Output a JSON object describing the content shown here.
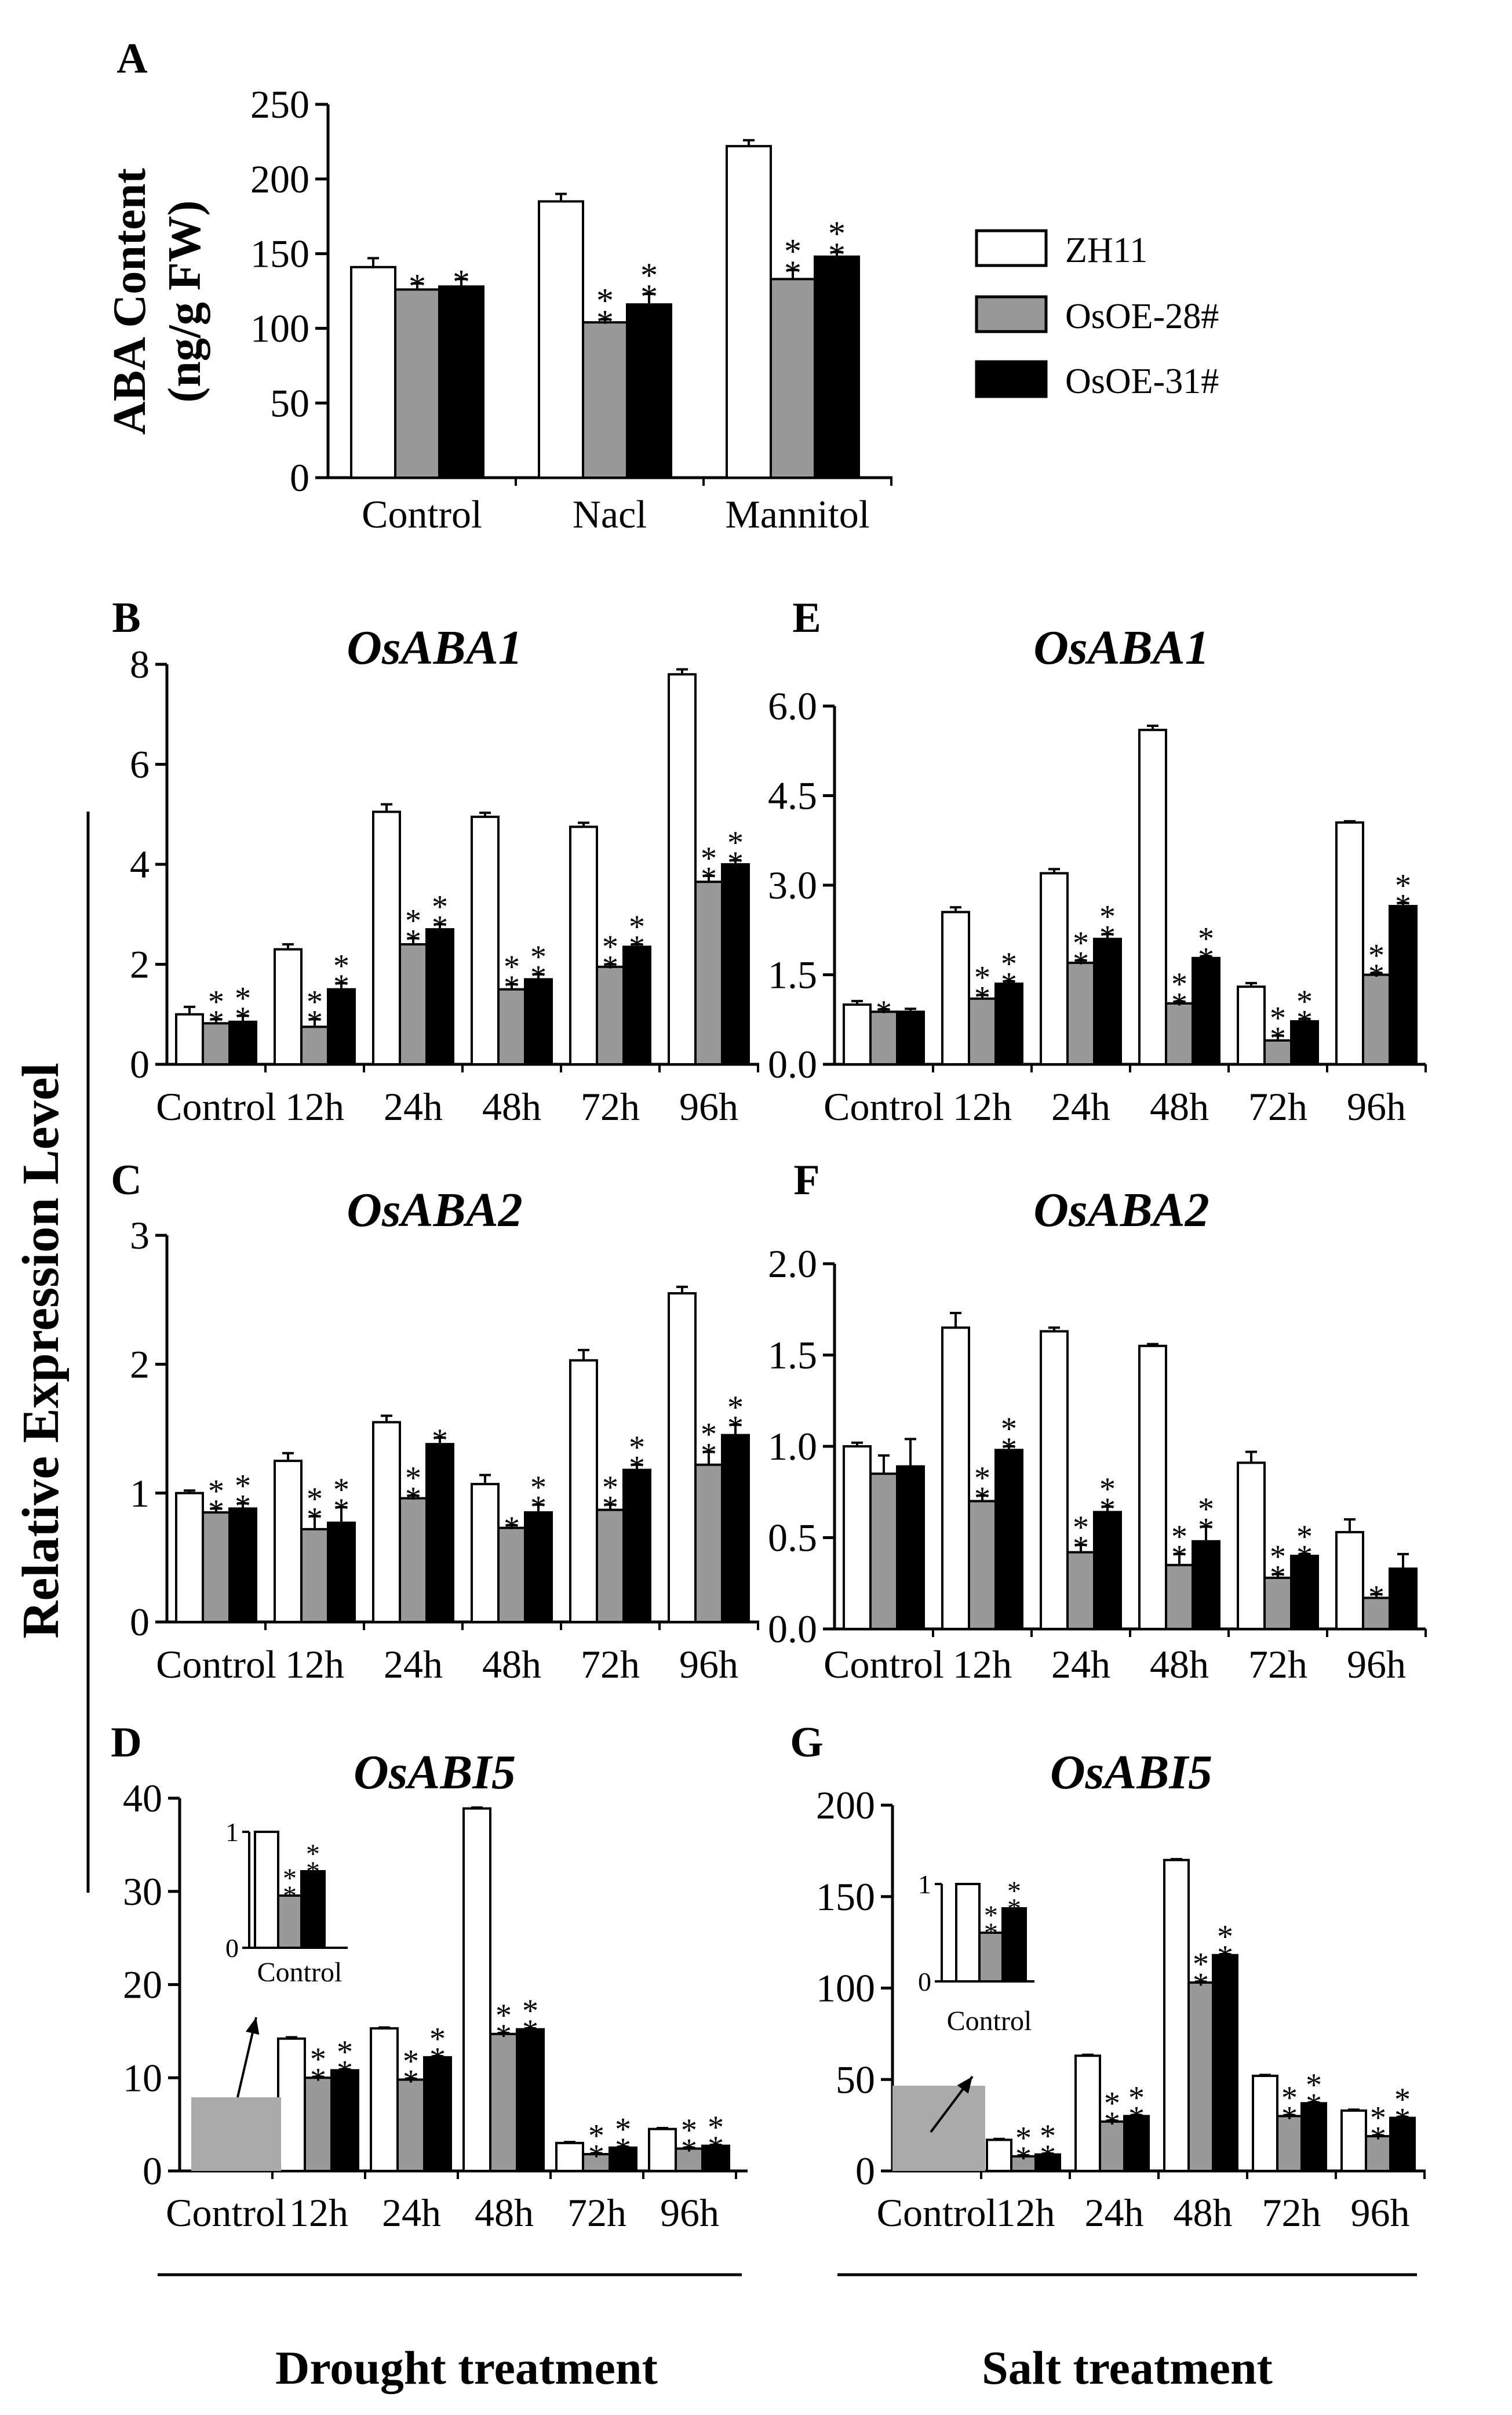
{
  "colors": {
    "zh11": "#ffffff",
    "oe28": "#999999",
    "oe31": "#000000",
    "stroke": "#000000",
    "inset_box": "#aaaaaa"
  },
  "legend": {
    "entries": [
      "ZH11",
      "OsOE-28#",
      "OsOE-31#"
    ]
  },
  "shared_ylabel": "Relative Expression Level",
  "footer": {
    "left": "Drought treatment",
    "right": "Salt treatment"
  },
  "chart_data": [
    {
      "id": "A",
      "letter": "A",
      "type": "bar",
      "title": "",
      "ylabel": [
        "ABA Content",
        "(ng/g FW)"
      ],
      "ylim": [
        0,
        250
      ],
      "yticks": [
        "0",
        "50",
        "100",
        "150",
        "200",
        "250"
      ],
      "categories": [
        "Control",
        "Nacl",
        "Mannitol"
      ],
      "series": [
        {
          "name": "ZH11",
          "values": [
            141,
            185,
            222
          ],
          "errors": [
            6,
            5,
            4
          ]
        },
        {
          "name": "OsOE-28#",
          "values": [
            126,
            104,
            133
          ],
          "errors": [
            4,
            2,
            6
          ]
        },
        {
          "name": "OsOE-31#",
          "values": [
            128,
            116,
            148
          ],
          "errors": [
            5,
            7,
            3
          ]
        }
      ],
      "significance": [
        [
          "",
          "",
          ""
        ],
        [
          "*",
          "**",
          "**"
        ],
        [
          "*",
          "**",
          "**"
        ]
      ]
    },
    {
      "id": "B",
      "letter": "B",
      "type": "bar",
      "title": "OsABA1",
      "ylim": [
        0,
        8
      ],
      "yticks": [
        "0",
        "2",
        "4",
        "6",
        "8"
      ],
      "categories": [
        "Control",
        "12h",
        "24h",
        "48h",
        "72h",
        "96h"
      ],
      "series": [
        {
          "name": "ZH11",
          "values": [
            1.0,
            2.3,
            5.05,
            4.95,
            4.75,
            7.8
          ],
          "errors": [
            0.15,
            0.1,
            0.15,
            0.08,
            0.08,
            0.1
          ]
        },
        {
          "name": "OsOE-28#",
          "values": [
            0.82,
            0.75,
            2.4,
            1.5,
            1.95,
            3.65
          ],
          "errors": [
            0.08,
            0.15,
            0.12,
            0.1,
            0.05,
            0.12
          ]
        },
        {
          "name": "OsOE-31#",
          "values": [
            0.85,
            1.5,
            2.7,
            1.7,
            2.35,
            4.0
          ],
          "errors": [
            0.12,
            0.12,
            0.1,
            0.1,
            0.05,
            0.08
          ]
        }
      ],
      "significance": [
        [
          "",
          "",
          "",
          "",
          "",
          ""
        ],
        [
          "**",
          "**",
          "**",
          "**",
          "**",
          "**"
        ],
        [
          "**",
          "**",
          "**",
          "**",
          "**",
          "**"
        ]
      ]
    },
    {
      "id": "E",
      "letter": "E",
      "type": "bar",
      "title": "OsABA1",
      "ylim": [
        0,
        6
      ],
      "yticks": [
        "0.0",
        "1.5",
        "3.0",
        "4.5",
        "6.0"
      ],
      "categories": [
        "Control",
        "12h",
        "24h",
        "48h",
        "72h",
        "96h"
      ],
      "series": [
        {
          "name": "ZH11",
          "values": [
            1.0,
            2.55,
            3.2,
            5.6,
            1.3,
            4.05
          ],
          "errors": [
            0.06,
            0.08,
            0.07,
            0.07,
            0.06,
            0.02
          ]
        },
        {
          "name": "OsOE-28#",
          "values": [
            0.88,
            1.1,
            1.7,
            1.02,
            0.4,
            1.5
          ],
          "errors": [
            0.04,
            0.06,
            0.04,
            0.03,
            0.08,
            0.03
          ]
        },
        {
          "name": "OsOE-31#",
          "values": [
            0.88,
            1.35,
            2.1,
            1.78,
            0.72,
            2.65
          ],
          "errors": [
            0.05,
            0.04,
            0.08,
            0.03,
            0.04,
            0.05
          ]
        }
      ],
      "significance": [
        [
          "",
          "",
          "",
          "",
          "",
          ""
        ],
        [
          "*",
          "**",
          "**",
          "**",
          "**",
          "**"
        ],
        [
          "",
          "**",
          "**",
          "**",
          "**",
          "**"
        ]
      ]
    },
    {
      "id": "C",
      "letter": "C",
      "type": "bar",
      "title": "OsABA2",
      "ylim": [
        0,
        3
      ],
      "yticks": [
        "0",
        "1",
        "2",
        "3"
      ],
      "categories": [
        "Control",
        "12h",
        "24h",
        "48h",
        "72h",
        "96h"
      ],
      "series": [
        {
          "name": "ZH11",
          "values": [
            1.0,
            1.25,
            1.55,
            1.07,
            2.03,
            2.55
          ],
          "errors": [
            0.02,
            0.06,
            0.05,
            0.07,
            0.08,
            0.05
          ]
        },
        {
          "name": "OsOE-28#",
          "values": [
            0.85,
            0.72,
            0.96,
            0.73,
            0.87,
            1.22
          ],
          "errors": [
            0.03,
            0.1,
            0.02,
            0.02,
            0.04,
            0.1
          ]
        },
        {
          "name": "OsOE-31#",
          "values": [
            0.88,
            0.77,
            1.38,
            0.85,
            1.18,
            1.45
          ],
          "errors": [
            0.04,
            0.12,
            0.05,
            0.06,
            0.04,
            0.08
          ]
        }
      ],
      "significance": [
        [
          "",
          "",
          "",
          "",
          "",
          ""
        ],
        [
          "**",
          "**",
          "**",
          "*",
          "**",
          "**"
        ],
        [
          "**",
          "**",
          "*",
          "**",
          "**",
          "**"
        ]
      ]
    },
    {
      "id": "F",
      "letter": "F",
      "type": "bar",
      "title": "OsABA2",
      "ylim": [
        0,
        2
      ],
      "yticks": [
        "0.0",
        "0.5",
        "1.0",
        "1.5",
        "2.0"
      ],
      "categories": [
        "Control",
        "12h",
        "24h",
        "48h",
        "72h",
        "96h"
      ],
      "series": [
        {
          "name": "ZH11",
          "values": [
            1.0,
            1.65,
            1.63,
            1.55,
            0.91,
            0.53
          ],
          "errors": [
            0.02,
            0.08,
            0.02,
            0.01,
            0.06,
            0.07
          ]
        },
        {
          "name": "OsOE-28#",
          "values": [
            0.85,
            0.7,
            0.42,
            0.35,
            0.28,
            0.17
          ],
          "errors": [
            0.1,
            0.03,
            0.04,
            0.06,
            0.02,
            0.02
          ]
        },
        {
          "name": "OsOE-31#",
          "values": [
            0.89,
            0.98,
            0.64,
            0.48,
            0.4,
            0.33
          ],
          "errors": [
            0.15,
            0.02,
            0.03,
            0.08,
            0.01,
            0.08
          ]
        }
      ],
      "significance": [
        [
          "",
          "",
          "",
          "",
          "",
          ""
        ],
        [
          "",
          "**",
          "**",
          "**",
          "**",
          "*"
        ],
        [
          "",
          "**",
          "**",
          "**",
          "**",
          ""
        ]
      ]
    },
    {
      "id": "D",
      "letter": "D",
      "type": "bar",
      "title": "OsABI5",
      "ylim": [
        0,
        40
      ],
      "yticks": [
        "0",
        "10",
        "20",
        "30",
        "40"
      ],
      "categories": [
        "Control",
        "12h",
        "24h",
        "48h",
        "72h",
        "96h"
      ],
      "skip_first": true,
      "series": [
        {
          "name": "ZH11",
          "values": [
            1.0,
            14.2,
            15.3,
            38.9,
            3.0,
            4.5
          ],
          "errors": [
            0,
            0.15,
            0.1,
            0.1,
            0.1,
            0.1
          ]
        },
        {
          "name": "OsOE-28#",
          "values": [
            0.45,
            10.0,
            9.8,
            14.7,
            1.8,
            2.4
          ],
          "errors": [
            0,
            0.1,
            0.1,
            0.1,
            0.1,
            0.1
          ]
        },
        {
          "name": "OsOE-31#",
          "values": [
            0.66,
            10.8,
            12.2,
            15.2,
            2.5,
            2.7
          ],
          "errors": [
            0,
            0.1,
            0.1,
            0.1,
            0.1,
            0.1
          ]
        }
      ],
      "significance": [
        [
          "",
          "",
          "",
          "",
          "",
          ""
        ],
        [
          "",
          "**",
          "**",
          "**",
          "**",
          "**"
        ],
        [
          "",
          "**",
          "**",
          "**",
          "**",
          "**"
        ]
      ],
      "inset": {
        "ylim": [
          0,
          1
        ],
        "yticks": [
          "0",
          "1"
        ],
        "category": "Control",
        "values": [
          1.0,
          0.45,
          0.66
        ],
        "significance": [
          "",
          "**",
          "**"
        ]
      }
    },
    {
      "id": "G",
      "letter": "G",
      "type": "bar",
      "title": "OsABI5",
      "ylim": [
        0,
        200
      ],
      "yticks": [
        "0",
        "50",
        "100",
        "150",
        "200"
      ],
      "categories": [
        "Control",
        "12h",
        "24h",
        "48h",
        "72h",
        "96h"
      ],
      "skip_first": true,
      "series": [
        {
          "name": "ZH11",
          "values": [
            1.0,
            17,
            63,
            170,
            52,
            33
          ],
          "errors": [
            0,
            0.5,
            0.5,
            0.5,
            0.5,
            0.5
          ]
        },
        {
          "name": "OsOE-28#",
          "values": [
            0.5,
            8,
            27,
            103,
            30,
            19
          ],
          "errors": [
            0,
            0.5,
            0.5,
            0.5,
            0.5,
            0.5
          ]
        },
        {
          "name": "OsOE-31#",
          "values": [
            0.75,
            9,
            30,
            118,
            37,
            29
          ],
          "errors": [
            0,
            0.5,
            0.5,
            0.5,
            0.5,
            0.5
          ]
        }
      ],
      "significance": [
        [
          "",
          "",
          "",
          "",
          "",
          ""
        ],
        [
          "",
          "**",
          "**",
          "**",
          "**",
          "**"
        ],
        [
          "",
          "**",
          "**",
          "**",
          "**",
          "**"
        ]
      ],
      "inset": {
        "ylim": [
          0,
          1
        ],
        "yticks": [
          "0",
          "1"
        ],
        "category": "Control",
        "values": [
          1.0,
          0.5,
          0.75
        ],
        "significance": [
          "",
          "**",
          "**"
        ]
      }
    }
  ]
}
